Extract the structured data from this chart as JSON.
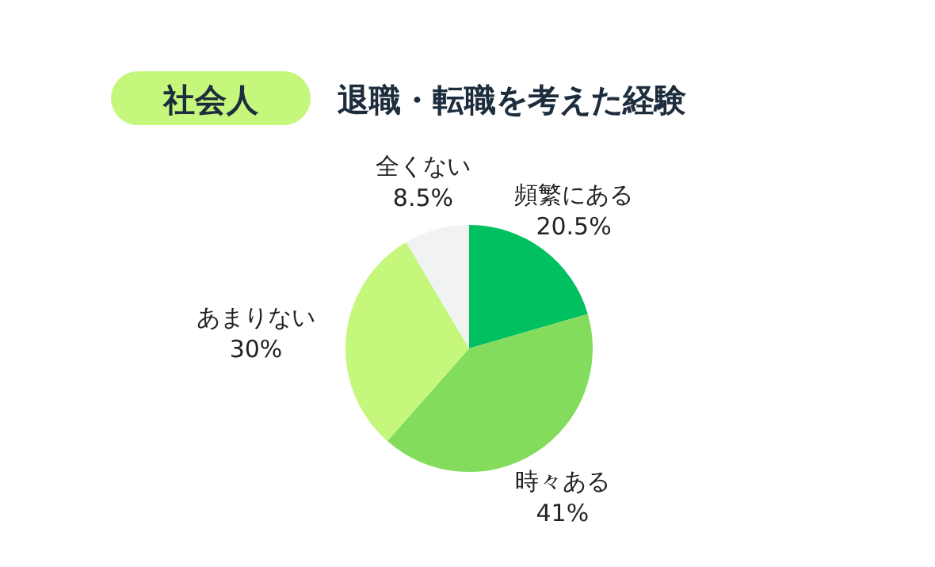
{
  "chart_data": {
    "type": "pie",
    "subtitle": "社会人",
    "title": "退職・転職を考えた経験",
    "categories": [
      "頻繁にある",
      "時々ある",
      "あまりない",
      "全くない"
    ],
    "values": [
      20.5,
      41,
      30,
      8.5
    ],
    "value_labels": [
      "20.5%",
      "41%",
      "30%",
      "8.5%"
    ],
    "colors": [
      "#00c060",
      "#84dc5c",
      "#c4f77c",
      "#f1f3f3"
    ]
  }
}
